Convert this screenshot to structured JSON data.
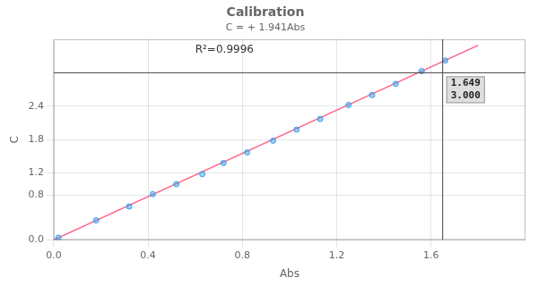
{
  "chart_data": {
    "type": "scatter",
    "title": "Calibration",
    "subtitle": "C = + 1.941Abs",
    "x_label": "Abs",
    "y_label": "C",
    "xlim": [
      0,
      2.0
    ],
    "ylim": [
      0,
      3.6
    ],
    "xticks": [
      {
        "value": 0,
        "label": "0.0"
      },
      0.4,
      0.8,
      1.2,
      1.6
    ],
    "yticks": [
      {
        "value": 0,
        "label": "0.0"
      },
      0.8,
      1.2,
      1.8,
      2.4
    ],
    "grid": true,
    "series": [
      {
        "type": "scatter",
        "x": [
          0.02,
          0.18,
          0.32,
          0.42,
          0.52,
          0.63,
          0.72,
          0.82,
          0.93,
          1.03,
          1.13,
          1.25,
          1.35,
          1.45,
          1.56,
          1.66
        ],
        "values": [
          0.04,
          0.35,
          0.6,
          0.82,
          1.0,
          1.18,
          1.38,
          1.57,
          1.78,
          1.98,
          2.17,
          2.42,
          2.6,
          2.8,
          3.03,
          3.22
        ]
      },
      {
        "type": "line",
        "x": [
          0.0,
          1.8
        ],
        "values": [
          0,
          3.4938
        ]
      }
    ],
    "annotations": [
      {
        "text": "R²=0.9996"
      }
    ],
    "reference_lines": [
      {
        "axis": "x",
        "value": 1.649,
        "label": "1.649"
      },
      {
        "axis": "y",
        "value": 3.0,
        "label": "3.000"
      }
    ]
  }
}
